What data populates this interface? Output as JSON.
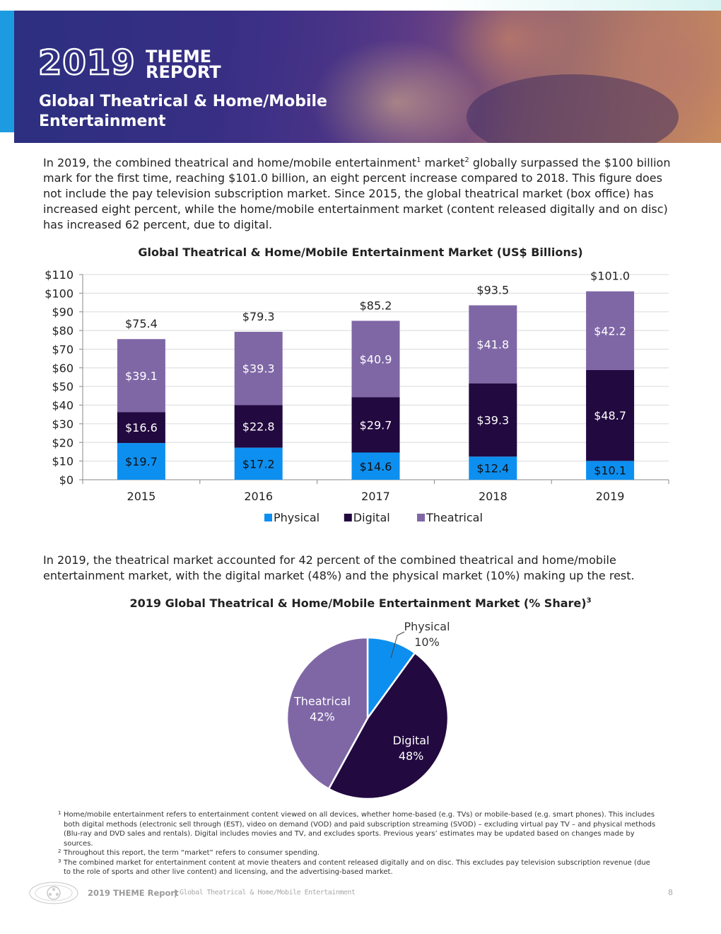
{
  "header": {
    "brand_year": "2019",
    "brand_line1": "THEME",
    "brand_line2": "REPORT",
    "title": "Global Theatrical & Home/Mobile Entertainment"
  },
  "intro": {
    "p1": "In 2019, the combined theatrical and home/mobile entertainment",
    "fn1": "1",
    "p2": " market",
    "fn2": "2",
    "p3": " globally surpassed the $100 billion mark for the first time, reaching $101.0 billion, an eight percent increase compared to 2018. This figure does not include the pay television subscription market. Since 2015, the global theatrical market (box office) has increased eight percent, while the home/mobile entertainment market (content released digitally and on disc) has increased 62 percent, due to digital."
  },
  "share_paragraph": "In 2019, the theatrical market accounted for 42 percent of the combined theatrical and home/mobile entertainment market, with the digital market (48%) and the physical market (10%) making up the rest.",
  "colors": {
    "physical": "#0d8ff0",
    "digital": "#22093f",
    "theatrical": "#7f67a6",
    "grid": "#d9d9d9"
  },
  "chart_data": [
    {
      "type": "bar",
      "stacked": true,
      "title": "Global Theatrical & Home/Mobile Entertainment Market (US$ Billions)",
      "categories": [
        "2015",
        "2016",
        "2017",
        "2018",
        "2019"
      ],
      "series": [
        {
          "name": "Physical",
          "values": [
            19.7,
            17.2,
            14.6,
            12.4,
            10.1
          ],
          "labels": [
            "$19.7",
            "$17.2",
            "$14.6",
            "$12.4",
            "$10.1"
          ]
        },
        {
          "name": "Digital",
          "values": [
            16.6,
            22.8,
            29.7,
            39.3,
            48.7
          ],
          "labels": [
            "$16.6",
            "$22.8",
            "$29.7",
            "$39.3",
            "$48.7"
          ]
        },
        {
          "name": "Theatrical",
          "values": [
            39.1,
            39.3,
            40.9,
            41.8,
            42.2
          ],
          "labels": [
            "$39.1",
            "$39.3",
            "$40.9",
            "$41.8",
            "$42.2"
          ]
        }
      ],
      "totals": [
        75.4,
        79.3,
        85.2,
        93.5,
        101.0
      ],
      "total_labels": [
        "$75.4",
        "$79.3",
        "$85.2",
        "$93.5",
        "$101.0"
      ],
      "yticks": [
        "$0",
        "$10",
        "$20",
        "$30",
        "$40",
        "$50",
        "$60",
        "$70",
        "$80",
        "$90",
        "$100",
        "$110"
      ],
      "ylim": [
        0,
        110
      ],
      "grid": true,
      "legend": "bottom"
    },
    {
      "type": "pie",
      "title": "2019 Global Theatrical & Home/Mobile Entertainment Market (% Share)",
      "title_sup": "3",
      "slices": [
        {
          "name": "Physical",
          "value": 10,
          "label": "10%"
        },
        {
          "name": "Digital",
          "value": 48,
          "label": "48%"
        },
        {
          "name": "Theatrical",
          "value": 42,
          "label": "42%"
        }
      ]
    }
  ],
  "footnotes": [
    {
      "num": "1",
      "text": "Home/mobile entertainment refers to entertainment content viewed on all devices, whether home-based (e.g. TVs) or mobile-based (e.g. smart phones). This includes both digital methods (electronic sell through (EST), video on demand (VOD) and paid subscription streaming (SVOD) – excluding virtual pay TV – and physical methods (Blu-ray and DVD sales and rentals). Digital includes movies and TV, and excludes sports. Previous years’ estimates may be updated based on changes made by sources."
    },
    {
      "num": "2",
      "text": "Throughout this report, the term “market” refers to consumer spending."
    },
    {
      "num": "3",
      "text": "The combined market for entertainment content at movie theaters and content released digitally and on disc. This excludes pay television subscription revenue (due to the role of sports and other live content) and licensing, and the advertising-based market."
    }
  ],
  "footer": {
    "report": "2019 THEME Report",
    "separator": "|",
    "section": "Global Theatrical & Home/Mobile Entertainment",
    "page": "8"
  }
}
